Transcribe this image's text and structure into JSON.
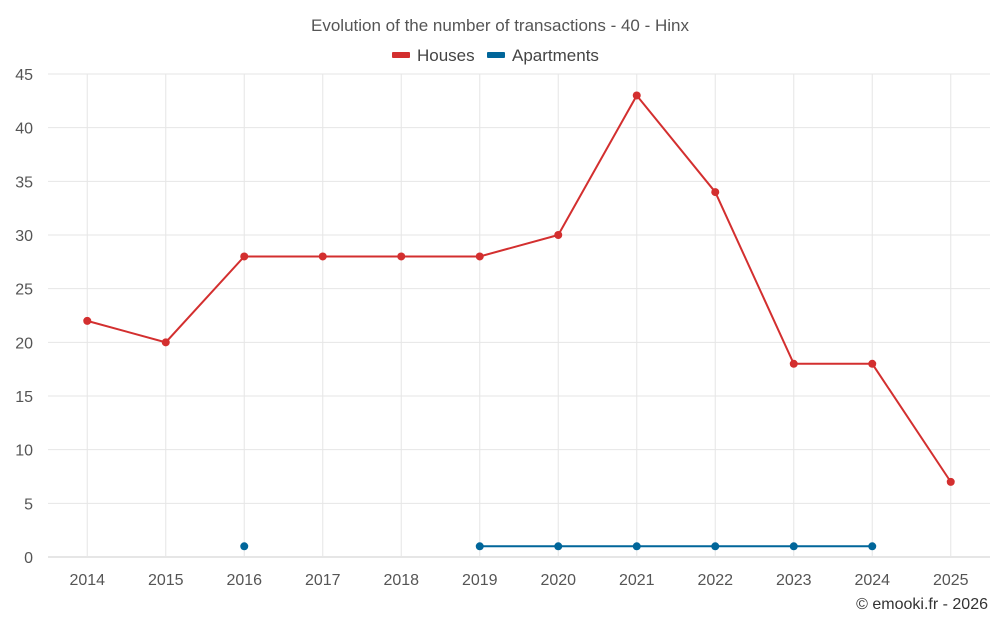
{
  "chart_data": {
    "type": "line",
    "title": "Evolution of the number of transactions - 40 - Hinx",
    "categories": [
      "2014",
      "2015",
      "2016",
      "2017",
      "2018",
      "2019",
      "2020",
      "2021",
      "2022",
      "2023",
      "2024",
      "2025"
    ],
    "series": [
      {
        "name": "Houses",
        "color": "#d32f2f",
        "values": [
          22,
          20,
          28,
          28,
          28,
          28,
          30,
          43,
          34,
          18,
          18,
          7
        ]
      },
      {
        "name": "Apartments",
        "color": "#01669a",
        "values": [
          null,
          null,
          1,
          null,
          null,
          1,
          1,
          1,
          1,
          1,
          1,
          null
        ]
      }
    ],
    "ylim": [
      0,
      45
    ],
    "yticks": [
      0,
      5,
      10,
      15,
      20,
      25,
      30,
      35,
      40,
      45
    ],
    "xlabel": "",
    "ylabel": "",
    "grid": true,
    "legend_position": "top-center"
  },
  "credit": "© emooki.fr - 2026"
}
